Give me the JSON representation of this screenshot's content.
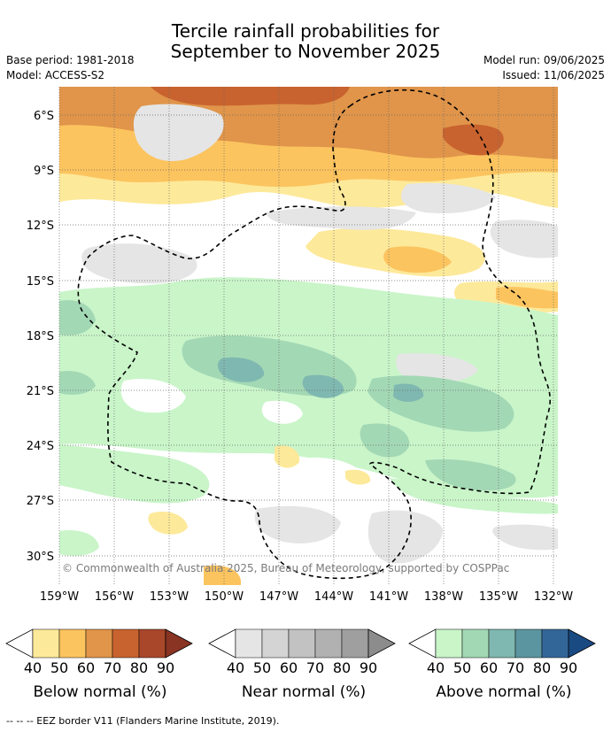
{
  "header": {
    "title_line1": "Tercile rainfall probabilities for",
    "title_line2": "September to November 2025",
    "base_period": "Base period: 1981-2018",
    "model": "Model: ACCESS-S2",
    "model_run": "Model run: 09/06/2025",
    "issued": "Issued: 11/06/2025"
  },
  "map": {
    "lat_labels": [
      "6°S",
      "9°S",
      "12°S",
      "15°S",
      "18°S",
      "21°S",
      "24°S",
      "27°S",
      "30°S"
    ],
    "lon_labels": [
      "159°W",
      "156°W",
      "153°W",
      "150°W",
      "147°W",
      "144°W",
      "141°W",
      "138°W",
      "135°W",
      "132°W"
    ],
    "copyright": "© Commonwealth of Australia 2025, Bureau of Meteorology, supported by COSPPac"
  },
  "legends": [
    {
      "title": "Below normal (%)",
      "ticks": [
        "40",
        "50",
        "60",
        "70",
        "80",
        "90"
      ],
      "colors": [
        "#fde99a",
        "#fcc45f",
        "#e0954a",
        "#c8632f",
        "#a9472a",
        "#8a3424"
      ]
    },
    {
      "title": "Near normal (%)",
      "ticks": [
        "40",
        "50",
        "60",
        "70",
        "80",
        "90"
      ],
      "colors": [
        "#e5e5e5",
        "#d4d4d4",
        "#c2c2c2",
        "#b1b1b1",
        "#9f9f9f",
        "#8c8c8c"
      ]
    },
    {
      "title": "Above normal (%)",
      "ticks": [
        "40",
        "50",
        "60",
        "70",
        "80",
        "90"
      ],
      "colors": [
        "#c9f5c9",
        "#a3d8b5",
        "#7fb8b0",
        "#5a95a0",
        "#336698",
        "#1a4a82"
      ]
    }
  ],
  "footer": "-- -- -- EEZ border V11 (Flanders Marine Institute, 2019)."
}
